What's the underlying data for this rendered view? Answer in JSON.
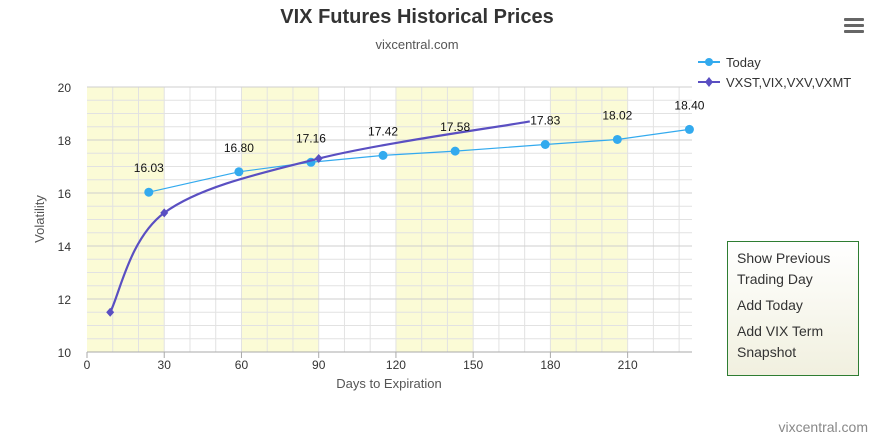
{
  "title": "VIX Futures Historical Prices",
  "subtitle": "vixcentral.com",
  "credit": "vixcentral.com",
  "menu": {
    "icon": "hamburger-menu-icon",
    "items": [
      "Show Previous Trading Day",
      "Add Today",
      "Add VIX Term Snapshot"
    ]
  },
  "colors": {
    "today": "#33aaee",
    "term": "#5a4fc2",
    "band": "#fbfbd6",
    "grid": "#e2e2e2",
    "menu_border": "#2e7d32"
  },
  "chart_data": {
    "type": "line",
    "xlabel": "Days to Expiration",
    "ylabel": "Volatility",
    "xlim": [
      0,
      235
    ],
    "ylim": [
      10,
      20
    ],
    "x_ticks": [
      "0",
      "30",
      "60",
      "90",
      "120",
      "150",
      "180",
      "210"
    ],
    "y_ticks": [
      "10",
      "12",
      "14",
      "16",
      "18",
      "20"
    ],
    "alternating_bands": true,
    "grid": true,
    "legend_position": "top-right",
    "series": [
      {
        "name": "Today",
        "marker": "circle",
        "x": [
          24,
          59,
          87,
          115,
          143,
          178,
          206,
          234
        ],
        "y": [
          16.03,
          16.8,
          17.16,
          17.42,
          17.58,
          17.83,
          18.02,
          18.4
        ],
        "labels": [
          "16.03",
          "16.80",
          "17.16",
          "17.42",
          "17.58",
          "17.83",
          "18.02",
          "18.40"
        ]
      },
      {
        "name": "VXST,VIX,VXV,VXMT",
        "marker": "diamond",
        "x": [
          9,
          30,
          90,
          172
        ],
        "y": [
          11.5,
          15.25,
          17.3,
          18.7
        ]
      }
    ]
  }
}
